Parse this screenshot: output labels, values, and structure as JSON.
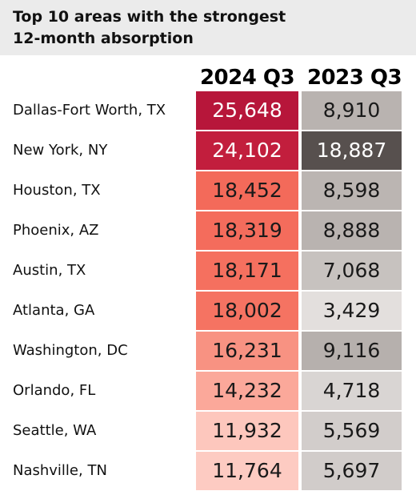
{
  "title": {
    "line1": "Top 10 areas with the strongest",
    "line2": "12-month absorption"
  },
  "chart_data": {
    "type": "table",
    "columns": [
      "2024 Q3",
      "2023 Q3"
    ],
    "rows": [
      {
        "area": "Dallas-Fort Worth, TX",
        "q3_2024": "25,648",
        "q3_2023": "8,910",
        "color_2024": "#b7163a",
        "color_2023": "#b9b3b0"
      },
      {
        "area": "New York, NY",
        "q3_2024": "24,102",
        "q3_2023": "18,887",
        "color_2024": "#c21e3d",
        "color_2023": "#57504e"
      },
      {
        "area": "Houston, TX",
        "q3_2024": "18,452",
        "q3_2023": "8,598",
        "color_2024": "#f36a5a",
        "color_2023": "#bbb5b2"
      },
      {
        "area": "Phoenix, AZ",
        "q3_2024": "18,319",
        "q3_2023": "8,888",
        "color_2024": "#f46c5c",
        "color_2023": "#b9b3b0"
      },
      {
        "area": "Austin, TX",
        "q3_2024": "18,171",
        "q3_2023": "7,068",
        "color_2024": "#f5705f",
        "color_2023": "#c7c2bf"
      },
      {
        "area": "Atlanta, GA",
        "q3_2024": "18,002",
        "q3_2023": "3,429",
        "color_2024": "#f57362",
        "color_2023": "#e3dfdd"
      },
      {
        "area": "Washington, DC",
        "q3_2024": "16,231",
        "q3_2023": "9,116",
        "color_2024": "#f89282",
        "color_2023": "#b6b0ad"
      },
      {
        "area": "Orlando, FL",
        "q3_2024": "14,232",
        "q3_2023": "4,718",
        "color_2024": "#fba89a",
        "color_2023": "#d9d5d3"
      },
      {
        "area": "Seattle, WA",
        "q3_2024": "11,932",
        "q3_2023": "5,569",
        "color_2024": "#fdc7bd",
        "color_2023": "#d2cdcb"
      },
      {
        "area": "Nashville, TN",
        "q3_2024": "11,764",
        "q3_2023": "5,697",
        "color_2024": "#fdcbc2",
        "color_2023": "#d1ccca"
      }
    ]
  }
}
